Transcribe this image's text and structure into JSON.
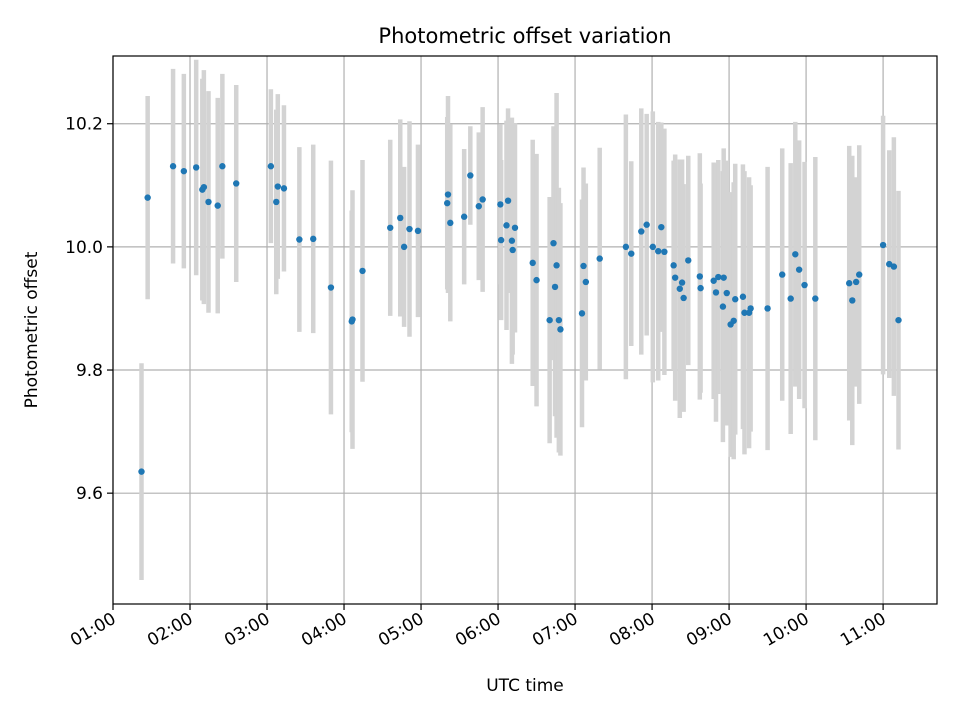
{
  "chart_data": {
    "type": "scatter",
    "title": "Photometric offset variation",
    "xlabel": "UTC time",
    "ylabel": "Photometric offset",
    "xlim": [
      1.0,
      11.7
    ],
    "ylim": [
      9.42,
      10.31
    ],
    "grid": true,
    "x_ticks": [
      {
        "value": 1,
        "label": "01:00"
      },
      {
        "value": 2,
        "label": "02:00"
      },
      {
        "value": 3,
        "label": "03:00"
      },
      {
        "value": 4,
        "label": "04:00"
      },
      {
        "value": 5,
        "label": "05:00"
      },
      {
        "value": 6,
        "label": "06:00"
      },
      {
        "value": 7,
        "label": "07:00"
      },
      {
        "value": 8,
        "label": "08:00"
      },
      {
        "value": 9,
        "label": "09:00"
      },
      {
        "value": 10,
        "label": "10:00"
      },
      {
        "value": 11,
        "label": "11:00"
      }
    ],
    "y_ticks": [
      {
        "value": 9.6,
        "label": "9.6"
      },
      {
        "value": 9.8,
        "label": "9.8"
      },
      {
        "value": 10.0,
        "label": "10.0"
      },
      {
        "value": 10.2,
        "label": "10.2"
      }
    ],
    "colors": {
      "point": "#1f77b4",
      "errorbar": "#d3d3d3",
      "grid": "#b0b0b0"
    },
    "series": [
      {
        "name": "offset",
        "points": [
          [
            1.37,
            9.635,
            0.176
          ],
          [
            1.45,
            10.08,
            0.165
          ],
          [
            1.78,
            10.131,
            0.158
          ],
          [
            1.92,
            10.123,
            0.158
          ],
          [
            2.08,
            10.129,
            0.175
          ],
          [
            2.16,
            10.093,
            0.18
          ],
          [
            2.18,
            10.097,
            0.19
          ],
          [
            2.24,
            10.073,
            0.18
          ],
          [
            2.36,
            10.067,
            0.175
          ],
          [
            2.42,
            10.131,
            0.15
          ],
          [
            2.6,
            10.103,
            0.16
          ],
          [
            3.05,
            10.131,
            0.125
          ],
          [
            3.12,
            10.073,
            0.15
          ],
          [
            3.14,
            10.098,
            0.15
          ],
          [
            3.22,
            10.095,
            0.135
          ],
          [
            3.42,
            10.012,
            0.15
          ],
          [
            3.6,
            10.013,
            0.153
          ],
          [
            3.83,
            9.934,
            0.206
          ],
          [
            4.1,
            9.879,
            0.18
          ],
          [
            4.11,
            9.882,
            0.21
          ],
          [
            4.24,
            9.961,
            0.18
          ],
          [
            4.6,
            10.031,
            0.143
          ],
          [
            4.73,
            10.047,
            0.16
          ],
          [
            4.78,
            10.0,
            0.13
          ],
          [
            4.85,
            10.029,
            0.175
          ],
          [
            4.96,
            10.026,
            0.14
          ],
          [
            5.34,
            10.071,
            0.14
          ],
          [
            5.35,
            10.085,
            0.16
          ],
          [
            5.38,
            10.039,
            0.16
          ],
          [
            5.56,
            10.049,
            0.11
          ],
          [
            5.64,
            10.116,
            0.08
          ],
          [
            5.75,
            10.066,
            0.12
          ],
          [
            5.8,
            10.077,
            0.15
          ],
          [
            6.03,
            10.069,
            0.13
          ],
          [
            6.04,
            10.011,
            0.13
          ],
          [
            6.11,
            10.035,
            0.17
          ],
          [
            6.13,
            10.075,
            0.15
          ],
          [
            6.18,
            10.01,
            0.2
          ],
          [
            6.19,
            9.995,
            0.17
          ],
          [
            6.22,
            10.031,
            0.17
          ],
          [
            6.45,
            9.974,
            0.2
          ],
          [
            6.5,
            9.946,
            0.205
          ],
          [
            6.67,
            9.881,
            0.2
          ],
          [
            6.72,
            10.006,
            0.19
          ],
          [
            6.74,
            9.935,
            0.21
          ],
          [
            6.76,
            9.97,
            0.28
          ],
          [
            6.79,
            9.881,
            0.215
          ],
          [
            6.81,
            9.866,
            0.205
          ],
          [
            7.09,
            9.892,
            0.185
          ],
          [
            7.11,
            9.969,
            0.16
          ],
          [
            7.14,
            9.943,
            0.16
          ],
          [
            7.32,
            9.981,
            0.18
          ],
          [
            7.66,
            10.0,
            0.215
          ],
          [
            7.73,
            9.989,
            0.15
          ],
          [
            7.86,
            10.025,
            0.2
          ],
          [
            7.93,
            10.036,
            0.18
          ],
          [
            8.01,
            10.0,
            0.22
          ],
          [
            8.08,
            9.993,
            0.21
          ],
          [
            8.12,
            10.032,
            0.17
          ],
          [
            8.16,
            9.992,
            0.2
          ],
          [
            8.28,
            9.97,
            0.17
          ],
          [
            8.3,
            9.95,
            0.2
          ],
          [
            8.36,
            9.932,
            0.21
          ],
          [
            8.39,
            9.942,
            0.2
          ],
          [
            8.41,
            9.917,
            0.185
          ],
          [
            8.47,
            9.978,
            0.17
          ],
          [
            8.62,
            9.952,
            0.2
          ],
          [
            8.63,
            9.933,
            0.17
          ],
          [
            8.8,
            9.945,
            0.192
          ],
          [
            8.83,
            9.926,
            0.21
          ],
          [
            8.86,
            9.951,
            0.19
          ],
          [
            8.92,
            9.903,
            0.22
          ],
          [
            8.93,
            9.95,
            0.21
          ],
          [
            8.97,
            9.925,
            0.215
          ],
          [
            9.02,
            9.874,
            0.215
          ],
          [
            9.06,
            9.88,
            0.225
          ],
          [
            9.08,
            9.915,
            0.22
          ],
          [
            9.18,
            9.919,
            0.215
          ],
          [
            9.2,
            9.893,
            0.23
          ],
          [
            9.26,
            9.893,
            0.22
          ],
          [
            9.28,
            9.9,
            0.2
          ],
          [
            9.5,
            9.9,
            0.23
          ],
          [
            9.69,
            9.955,
            0.205
          ],
          [
            9.8,
            9.916,
            0.22
          ],
          [
            9.86,
            9.988,
            0.215
          ],
          [
            9.91,
            9.963,
            0.21
          ],
          [
            9.98,
            9.938,
            0.2
          ],
          [
            10.12,
            9.916,
            0.23
          ],
          [
            10.56,
            9.941,
            0.223
          ],
          [
            10.6,
            9.913,
            0.235
          ],
          [
            10.65,
            9.943,
            0.17
          ],
          [
            10.69,
            9.955,
            0.21
          ],
          [
            11.0,
            10.003,
            0.21
          ],
          [
            11.08,
            9.972,
            0.185
          ],
          [
            11.14,
            9.968,
            0.21
          ],
          [
            11.2,
            9.881,
            0.21
          ]
        ]
      }
    ]
  }
}
